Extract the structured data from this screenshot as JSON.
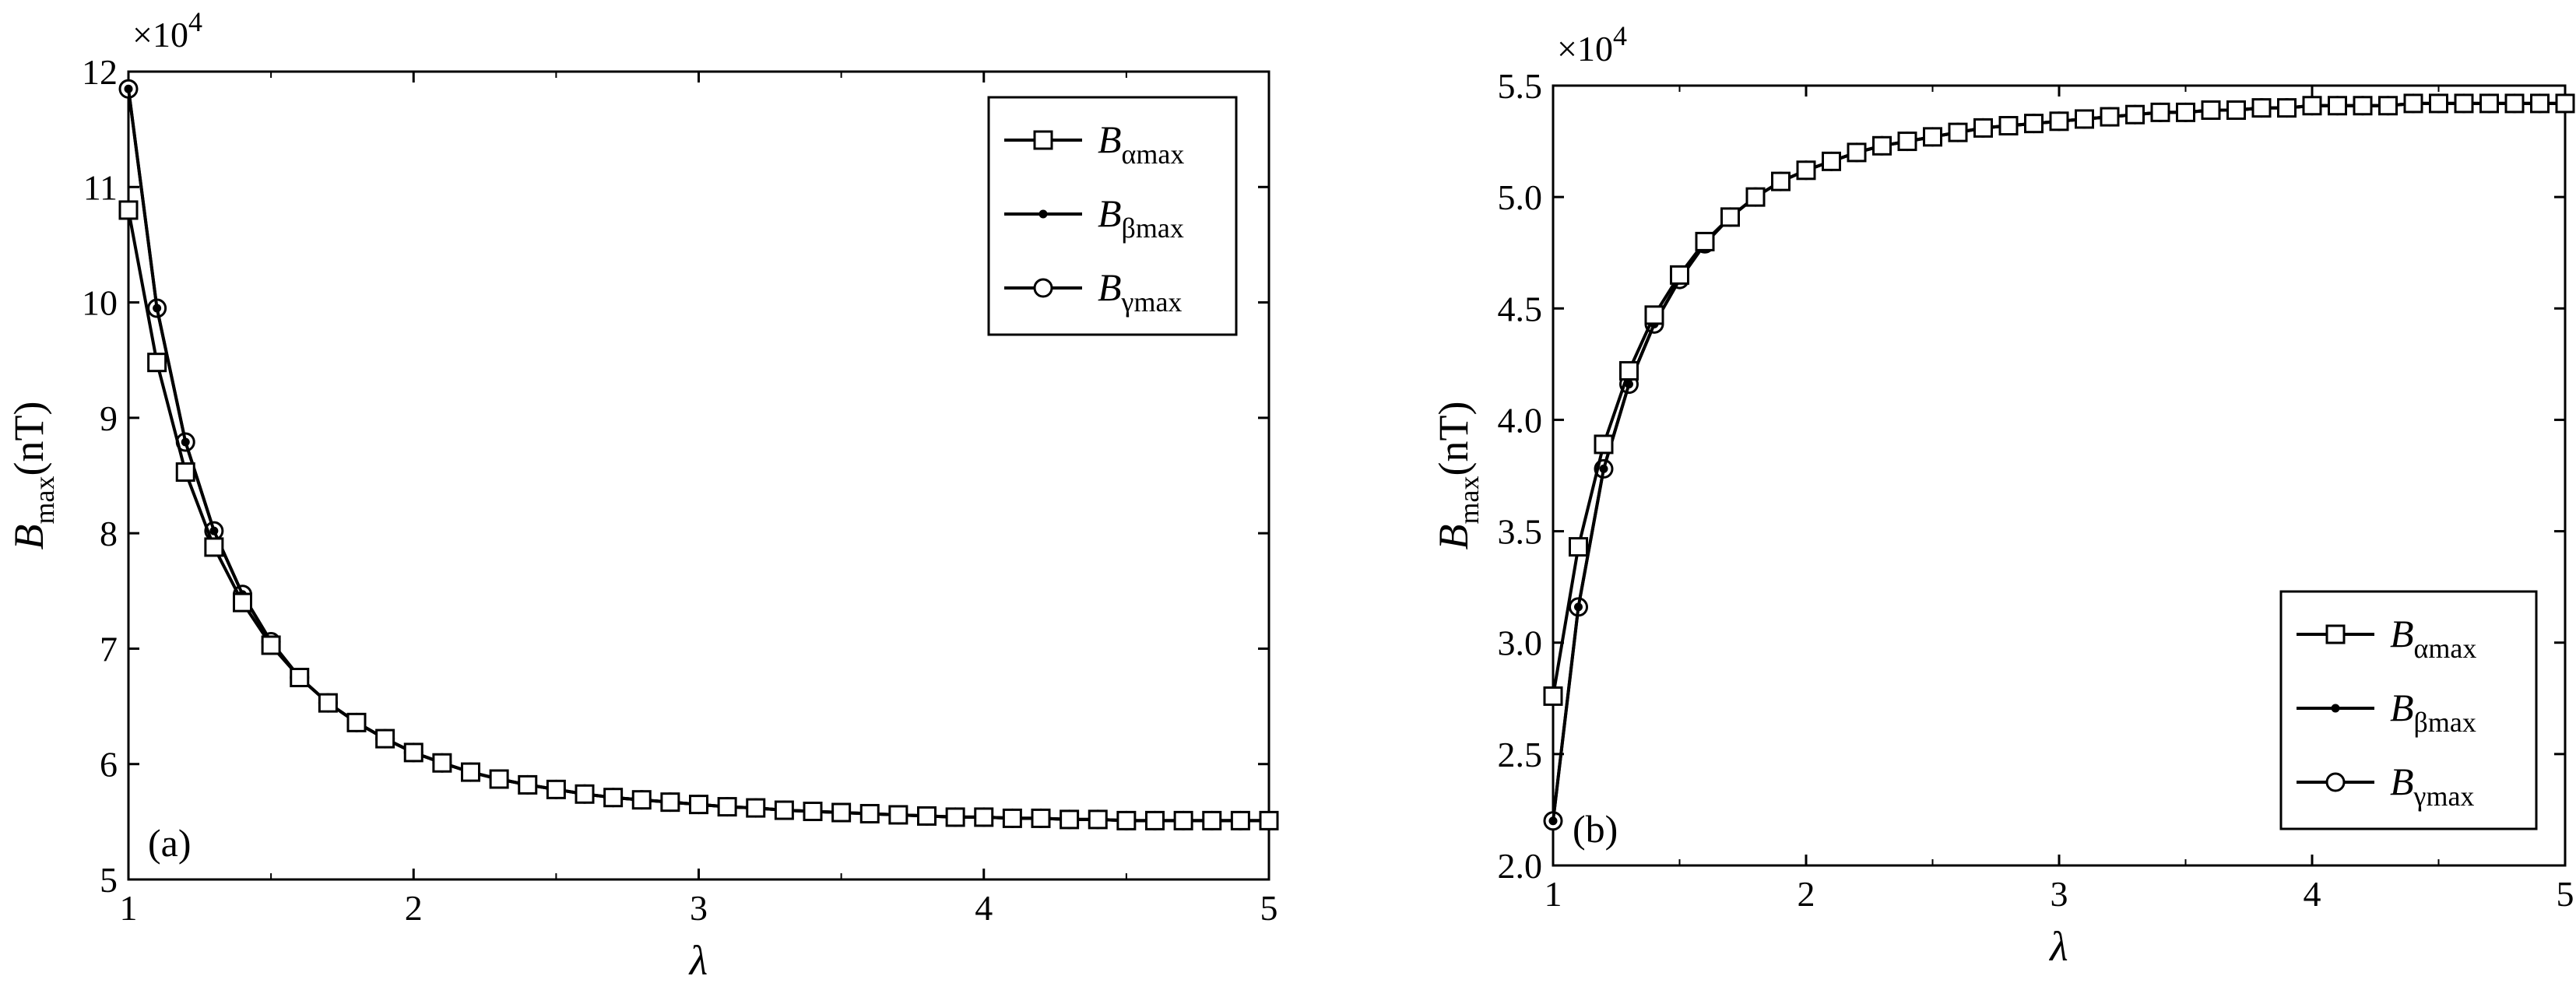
{
  "chart_data": [
    {
      "type": "line",
      "panel_label": "(a)",
      "xlabel": "λ",
      "ylabel": {
        "main": "B",
        "sub": "max",
        "unit": "(nT)"
      },
      "y_multiplier": "×10",
      "y_multiplier_exp": "4",
      "xlim": [
        1,
        5
      ],
      "ylim": [
        5,
        12
      ],
      "xticks": [
        "1",
        "2",
        "3",
        "4",
        "5"
      ],
      "yticks": [
        "5",
        "6",
        "7",
        "8",
        "9",
        "10",
        "11",
        "12"
      ],
      "legend_position": "top-right",
      "x": [
        1.0,
        1.1,
        1.2,
        1.3,
        1.4,
        1.5,
        1.6,
        1.7,
        1.8,
        1.9,
        2.0,
        2.1,
        2.2,
        2.3,
        2.4,
        2.5,
        2.6,
        2.7,
        2.8,
        2.9,
        3.0,
        3.1,
        3.2,
        3.3,
        3.4,
        3.5,
        3.6,
        3.7,
        3.8,
        3.9,
        4.0,
        4.1,
        4.2,
        4.3,
        4.4,
        4.5,
        4.6,
        4.7,
        4.8,
        4.9,
        5.0
      ],
      "series": [
        {
          "name": "B",
          "name_sub": "αmax",
          "marker": "square",
          "values": [
            10.8,
            9.48,
            8.53,
            7.88,
            7.4,
            7.03,
            6.75,
            6.53,
            6.36,
            6.22,
            6.1,
            6.01,
            5.93,
            5.87,
            5.82,
            5.78,
            5.74,
            5.71,
            5.69,
            5.67,
            5.65,
            5.63,
            5.62,
            5.6,
            5.59,
            5.58,
            5.57,
            5.56,
            5.55,
            5.54,
            5.54,
            5.53,
            5.53,
            5.52,
            5.52,
            5.51,
            5.51,
            5.51,
            5.51,
            5.51,
            5.51
          ]
        },
        {
          "name": "B",
          "name_sub": "βmax",
          "marker": "dot",
          "values": [
            11.85,
            9.95,
            8.79,
            8.02,
            7.47,
            7.06,
            6.75,
            6.53,
            6.36,
            6.22,
            6.1,
            6.01,
            5.93,
            5.87,
            5.82,
            5.78,
            5.74,
            5.71,
            5.69,
            5.67,
            5.65,
            5.63,
            5.62,
            5.6,
            5.59,
            5.58,
            5.57,
            5.56,
            5.55,
            5.54,
            5.54,
            5.53,
            5.53,
            5.52,
            5.52,
            5.51,
            5.51,
            5.51,
            5.51,
            5.51,
            5.51
          ]
        },
        {
          "name": "B",
          "name_sub": "γmax",
          "marker": "circle",
          "values": [
            11.85,
            9.95,
            8.79,
            8.02,
            7.47,
            7.06,
            6.75,
            6.53,
            6.36,
            6.22,
            6.1,
            6.01,
            5.93,
            5.87,
            5.82,
            5.78,
            5.74,
            5.71,
            5.69,
            5.67,
            5.65,
            5.63,
            5.62,
            5.6,
            5.59,
            5.58,
            5.57,
            5.56,
            5.55,
            5.54,
            5.54,
            5.53,
            5.53,
            5.52,
            5.52,
            5.51,
            5.51,
            5.51,
            5.51,
            5.51,
            5.51
          ]
        }
      ]
    },
    {
      "type": "line",
      "panel_label": "(b)",
      "xlabel": "λ",
      "ylabel": {
        "main": "B",
        "sub": "max",
        "unit": "(nT)"
      },
      "y_multiplier": "×10",
      "y_multiplier_exp": "4",
      "xlim": [
        1,
        5
      ],
      "ylim": [
        2.0,
        5.5
      ],
      "xticks": [
        "1",
        "2",
        "3",
        "4",
        "5"
      ],
      "yticks": [
        "2.0",
        "2.5",
        "3.0",
        "3.5",
        "4.0",
        "4.5",
        "5.0",
        "5.5"
      ],
      "legend_position": "bottom-right",
      "x": [
        1.0,
        1.1,
        1.2,
        1.3,
        1.4,
        1.5,
        1.6,
        1.7,
        1.8,
        1.9,
        2.0,
        2.1,
        2.2,
        2.3,
        2.4,
        2.5,
        2.6,
        2.7,
        2.8,
        2.9,
        3.0,
        3.1,
        3.2,
        3.3,
        3.4,
        3.5,
        3.6,
        3.7,
        3.8,
        3.9,
        4.0,
        4.1,
        4.2,
        4.3,
        4.4,
        4.5,
        4.6,
        4.7,
        4.8,
        4.9,
        5.0
      ],
      "series": [
        {
          "name": "B",
          "name_sub": "αmax",
          "marker": "square",
          "values": [
            2.76,
            3.43,
            3.89,
            4.22,
            4.47,
            4.65,
            4.8,
            4.91,
            5.0,
            5.07,
            5.12,
            5.16,
            5.2,
            5.23,
            5.25,
            5.27,
            5.29,
            5.31,
            5.32,
            5.33,
            5.34,
            5.35,
            5.36,
            5.37,
            5.38,
            5.38,
            5.39,
            5.39,
            5.4,
            5.4,
            5.41,
            5.41,
            5.41,
            5.41,
            5.42,
            5.42,
            5.42,
            5.42,
            5.42,
            5.42,
            5.42
          ]
        },
        {
          "name": "B",
          "name_sub": "βmax",
          "marker": "dot",
          "values": [
            2.2,
            3.16,
            3.78,
            4.16,
            4.43,
            4.63,
            4.79,
            4.91,
            5.0,
            5.07,
            5.12,
            5.16,
            5.2,
            5.23,
            5.25,
            5.27,
            5.29,
            5.31,
            5.32,
            5.33,
            5.34,
            5.35,
            5.36,
            5.37,
            5.38,
            5.38,
            5.39,
            5.39,
            5.4,
            5.4,
            5.41,
            5.41,
            5.41,
            5.41,
            5.42,
            5.42,
            5.42,
            5.42,
            5.42,
            5.42,
            5.42
          ]
        },
        {
          "name": "B",
          "name_sub": "γmax",
          "marker": "circle",
          "values": [
            2.2,
            3.16,
            3.78,
            4.16,
            4.43,
            4.63,
            4.79,
            4.91,
            5.0,
            5.07,
            5.12,
            5.16,
            5.2,
            5.23,
            5.25,
            5.27,
            5.29,
            5.31,
            5.32,
            5.33,
            5.34,
            5.35,
            5.36,
            5.37,
            5.38,
            5.38,
            5.39,
            5.39,
            5.4,
            5.4,
            5.41,
            5.41,
            5.41,
            5.41,
            5.42,
            5.42,
            5.42,
            5.42,
            5.42,
            5.42,
            5.42
          ]
        }
      ]
    }
  ]
}
